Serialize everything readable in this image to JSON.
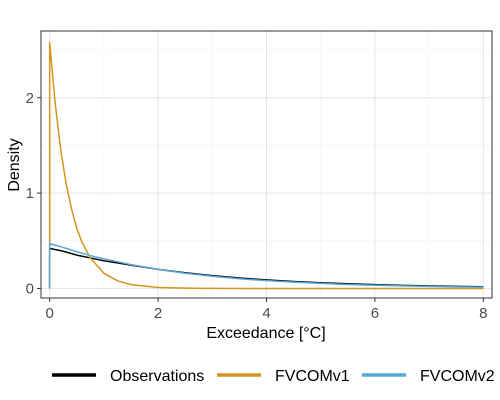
{
  "chart_data": {
    "type": "line",
    "title": "",
    "xlabel": "Exceedance [°C]",
    "ylabel": "Density",
    "xlim": [
      -0.16,
      8.16
    ],
    "ylim": [
      -0.1,
      2.7
    ],
    "xticks": [
      0,
      2,
      4,
      6,
      8
    ],
    "yticks": [
      0,
      1,
      2
    ],
    "grid": true,
    "legend_position": "bottom",
    "series": [
      {
        "name": "Observations",
        "color": "#000000",
        "x": [
          0,
          0,
          0.25,
          0.5,
          0.75,
          1,
          1.5,
          2,
          2.5,
          3,
          3.5,
          4,
          4.5,
          5,
          5.5,
          6,
          6.5,
          7,
          7.5,
          8
        ],
        "y": [
          0,
          0.42,
          0.39,
          0.35,
          0.32,
          0.29,
          0.245,
          0.2,
          0.165,
          0.135,
          0.11,
          0.09,
          0.073,
          0.06,
          0.049,
          0.04,
          0.033,
          0.027,
          0.022,
          0.018
        ]
      },
      {
        "name": "FVCOMv1",
        "color": "#D4941E",
        "x": [
          0,
          0,
          0.1,
          0.2,
          0.3,
          0.4,
          0.5,
          0.6,
          0.75,
          1,
          1.25,
          1.5,
          2,
          2.5,
          3,
          3.5,
          4,
          5,
          6,
          7,
          8
        ],
        "y": [
          0,
          2.58,
          1.95,
          1.47,
          1.11,
          0.84,
          0.63,
          0.48,
          0.32,
          0.16,
          0.08,
          0.04,
          0.01,
          0.003,
          0.001,
          0,
          0,
          0,
          0,
          0,
          0
        ]
      },
      {
        "name": "FVCOMv2",
        "color": "#56A8DA",
        "x": [
          0,
          0,
          0.25,
          0.5,
          0.75,
          1,
          1.5,
          2,
          2.5,
          3,
          3.5,
          4,
          4.5,
          5,
          5.5,
          6,
          6.5,
          7,
          7.5,
          8
        ],
        "y": [
          0,
          0.47,
          0.43,
          0.385,
          0.345,
          0.31,
          0.25,
          0.2,
          0.16,
          0.128,
          0.102,
          0.082,
          0.066,
          0.053,
          0.042,
          0.034,
          0.027,
          0.022,
          0.017,
          0.014
        ]
      }
    ]
  }
}
